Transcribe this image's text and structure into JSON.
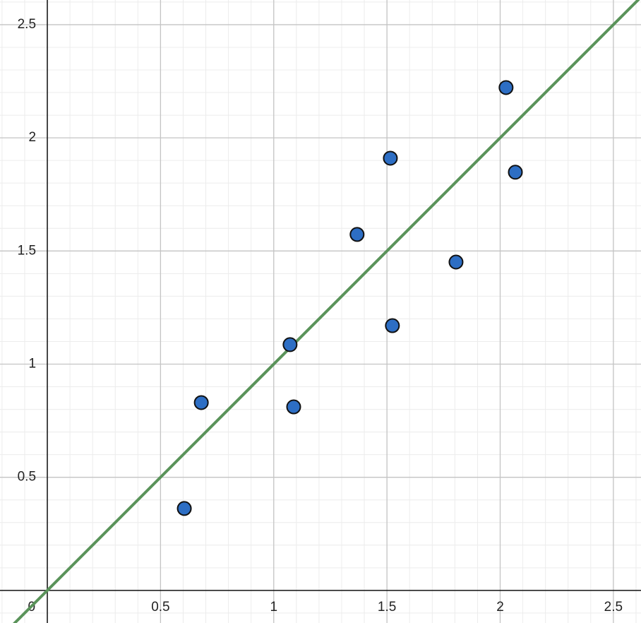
{
  "chart_data": {
    "type": "scatter",
    "x": [
      0.605,
      0.68,
      1.072,
      1.088,
      1.368,
      1.515,
      1.524,
      1.805,
      2.026,
      2.067
    ],
    "values": [
      0.362,
      0.83,
      1.086,
      0.811,
      1.573,
      1.91,
      1.17,
      1.451,
      2.222,
      1.848
    ],
    "color": "#2d6ec4",
    "fit_line": {
      "slope": 1,
      "intercept": 0,
      "color": "#5a935a"
    },
    "xlim": [
      -0.209,
      2.622
    ],
    "ylim": [
      -0.144,
      2.609
    ],
    "xticks": [
      0,
      0.5,
      1,
      1.5,
      2,
      2.5
    ],
    "yticks": [
      0.5,
      1,
      1.5,
      2,
      2.5
    ],
    "minor_step": 0.1,
    "grid": true
  }
}
